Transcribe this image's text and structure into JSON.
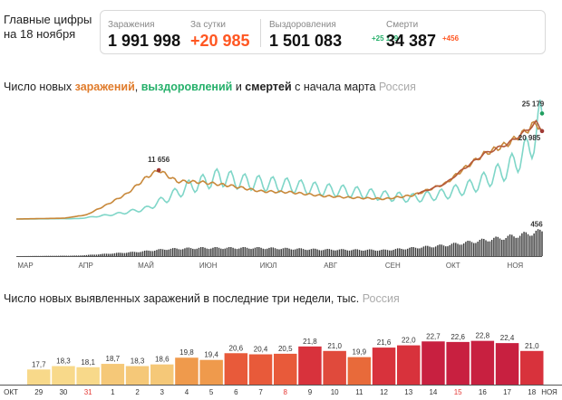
{
  "header": {
    "headline": [
      "Главные цифры",
      "на 18 ноября"
    ],
    "stats": {
      "cases": {
        "label": "Заражения",
        "value": "1 991 998"
      },
      "daily": {
        "label": "За сутки",
        "value": "+20 985"
      },
      "recoveries": {
        "label": "Выздоровления",
        "value": "1 501 083",
        "delta": "+25 179"
      },
      "deaths": {
        "label": "Смерти",
        "value": "34 387",
        "delta": "+456"
      }
    }
  },
  "colors": {
    "cases": "#e07b2a",
    "recoveries": "#25b06a",
    "deaths": "#222222",
    "accent": "#ff5722"
  },
  "chart1_title": {
    "prefix": "Число новых ",
    "cases": "заражений",
    "sep1": ", ",
    "recoveries": "выздоровлений",
    "sep2": " и ",
    "deaths": "смертей",
    "suffix": " с начала марта",
    "region": "Россия"
  },
  "chart2_title": {
    "text": "Число новых выявленных заражений в последние три недели, тыс.",
    "region": "Россия"
  },
  "chart_data": [
    {
      "type": "line",
      "x_unit": "day",
      "x_range": [
        "2020-03-01",
        "2020-11-18"
      ],
      "months": [
        "МАР",
        "АПР",
        "МАЙ",
        "ИЮН",
        "ИЮЛ",
        "АВГ",
        "СЕН",
        "ОКТ",
        "НОЯ"
      ],
      "series": [
        {
          "name": "заражения",
          "color": "#c8883a",
          "smooth_color": "#b55a3a",
          "anchors": [
            [
              "2020-03-01",
              0
            ],
            [
              "2020-03-25",
              200
            ],
            [
              "2020-04-05",
              1000
            ],
            [
              "2020-04-15",
              3400
            ],
            [
              "2020-04-25",
              6000
            ],
            [
              "2020-05-05",
              10000
            ],
            [
              "2020-05-11",
              11656
            ],
            [
              "2020-05-20",
              9000
            ],
            [
              "2020-06-01",
              8800
            ],
            [
              "2020-06-15",
              8000
            ],
            [
              "2020-07-01",
              6600
            ],
            [
              "2020-07-15",
              6400
            ],
            [
              "2020-08-01",
              5500
            ],
            [
              "2020-08-15",
              5100
            ],
            [
              "2020-09-01",
              4800
            ],
            [
              "2020-09-15",
              5700
            ],
            [
              "2020-10-01",
              8500
            ],
            [
              "2020-10-10",
              12000
            ],
            [
              "2020-10-20",
              15500
            ],
            [
              "2020-11-01",
              18000
            ],
            [
              "2020-11-10",
              21000
            ],
            [
              "2020-11-15",
              23000
            ],
            [
              "2020-11-18",
              20985
            ]
          ]
        },
        {
          "name": "выздоровления",
          "color": "#7fd6c8",
          "weekly_wave": true,
          "anchors": [
            [
              "2020-03-01",
              0
            ],
            [
              "2020-04-01",
              100
            ],
            [
              "2020-04-20",
              1200
            ],
            [
              "2020-05-05",
              2500
            ],
            [
              "2020-05-15",
              5000
            ],
            [
              "2020-05-25",
              7500
            ],
            [
              "2020-06-10",
              10000
            ],
            [
              "2020-06-20",
              9000
            ],
            [
              "2020-07-01",
              8500
            ],
            [
              "2020-07-15",
              8000
            ],
            [
              "2020-08-01",
              7000
            ],
            [
              "2020-08-15",
              6500
            ],
            [
              "2020-09-01",
              5500
            ],
            [
              "2020-09-15",
              5000
            ],
            [
              "2020-10-01",
              6000
            ],
            [
              "2020-10-15",
              8000
            ],
            [
              "2020-11-01",
              12000
            ],
            [
              "2020-11-10",
              16000
            ],
            [
              "2020-11-15",
              20000
            ],
            [
              "2020-11-18",
              25179
            ]
          ]
        },
        {
          "name": "смерти",
          "type": "bar",
          "color": "#3a3a3a",
          "ymax": 500,
          "anchors": [
            [
              "2020-03-01",
              0
            ],
            [
              "2020-04-01",
              10
            ],
            [
              "2020-05-01",
              80
            ],
            [
              "2020-05-15",
              130
            ],
            [
              "2020-06-01",
              150
            ],
            [
              "2020-07-01",
              150
            ],
            [
              "2020-08-01",
              120
            ],
            [
              "2020-09-01",
              110
            ],
            [
              "2020-10-01",
              200
            ],
            [
              "2020-11-01",
              350
            ],
            [
              "2020-11-18",
              456
            ]
          ]
        }
      ],
      "annotations": [
        {
          "x": "2020-05-11",
          "y": 11656,
          "text": "11 656",
          "series": "заражения"
        },
        {
          "x": "2020-11-18",
          "y": 25179,
          "text": "25 179",
          "series": "выздоровления"
        },
        {
          "x": "2020-11-18",
          "y": 20985,
          "text": "20 985",
          "series": "заражения"
        },
        {
          "x": "2020-11-18",
          "y": 456,
          "text": "456",
          "series": "смерти"
        }
      ],
      "ylim": [
        0,
        27000
      ]
    },
    {
      "type": "bar",
      "categories": [
        "29",
        "30",
        "31",
        "1",
        "2",
        "3",
        "4",
        "5",
        "6",
        "7",
        "8",
        "9",
        "10",
        "11",
        "12",
        "13",
        "14",
        "15",
        "16",
        "17",
        "18"
      ],
      "weekend_indices": [
        2,
        10,
        17
      ],
      "month_labels": [
        "ОКТ",
        "НОЯ"
      ],
      "values": [
        17.7,
        18.3,
        18.1,
        18.7,
        18.3,
        18.6,
        19.8,
        19.4,
        20.6,
        20.4,
        20.5,
        21.8,
        21.0,
        19.9,
        21.6,
        22.0,
        22.7,
        22.6,
        22.8,
        22.4,
        21.0
      ],
      "labels": [
        "17,7",
        "18,3",
        "18,1",
        "18,7",
        "18,3",
        "18,6",
        "19,8",
        "19,4",
        "20,6",
        "20,4",
        "20,5",
        "21,8",
        "21,0",
        "19,9",
        "21,6",
        "22,0",
        "22,7",
        "22,6",
        "22,8",
        "22,4",
        "21,0"
      ],
      "colors": [
        "#f8d98a",
        "#f8d98a",
        "#f8d98a",
        "#f5c878",
        "#f5c878",
        "#f5c878",
        "#ef9a4c",
        "#ef9a4c",
        "#e85a3a",
        "#e85a3a",
        "#e85a3a",
        "#d8323c",
        "#e04a3c",
        "#e86a3a",
        "#d8323c",
        "#d8323c",
        "#c82040",
        "#c82040",
        "#c82040",
        "#c82040",
        "#d8323c"
      ],
      "ylim": [
        0,
        25
      ]
    }
  ]
}
